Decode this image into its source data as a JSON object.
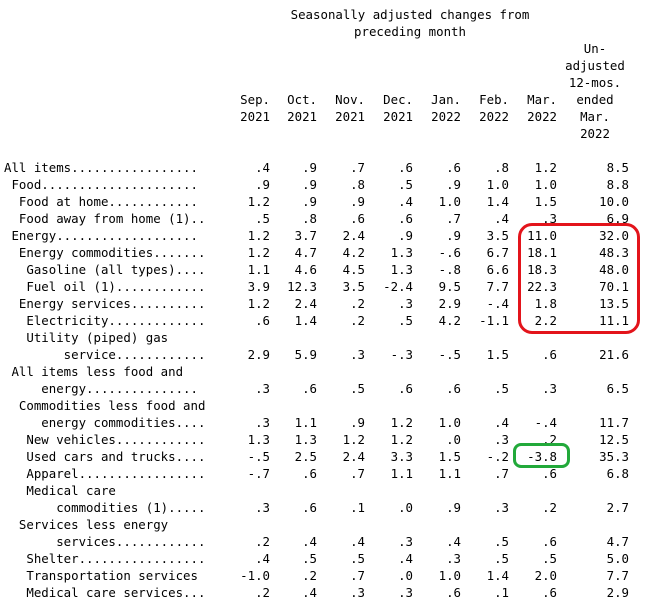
{
  "header": {
    "group_title_line1": "Seasonally adjusted changes from",
    "group_title_line2": "preceding month",
    "unadj_lines": [
      "Un-",
      "adjusted",
      "12-mos.",
      "ended",
      "Mar.",
      "2022"
    ]
  },
  "columns": [
    {
      "top": "Sep.",
      "bottom": "2021"
    },
    {
      "top": "Oct.",
      "bottom": "2021"
    },
    {
      "top": "Nov.",
      "bottom": "2021"
    },
    {
      "top": "Dec.",
      "bottom": "2021"
    },
    {
      "top": "Jan.",
      "bottom": "2022"
    },
    {
      "top": "Feb.",
      "bottom": "2022"
    },
    {
      "top": "Mar.",
      "bottom": "2022"
    }
  ],
  "rows": [
    {
      "label": "All items.................",
      "values": [
        ".4",
        ".9",
        ".7",
        ".6",
        ".6",
        ".8",
        "1.2",
        "8.5"
      ]
    },
    {
      "label": " Food.....................",
      "values": [
        ".9",
        ".9",
        ".8",
        ".5",
        ".9",
        "1.0",
        "1.0",
        "8.8"
      ]
    },
    {
      "label": "  Food at home............",
      "values": [
        "1.2",
        ".9",
        ".9",
        ".4",
        "1.0",
        "1.4",
        "1.5",
        "10.0"
      ]
    },
    {
      "label": "  Food away from home (1)..",
      "values": [
        ".5",
        ".8",
        ".6",
        ".6",
        ".7",
        ".4",
        ".3",
        "6.9"
      ]
    },
    {
      "label": " Energy...................",
      "values": [
        "1.2",
        "3.7",
        "2.4",
        ".9",
        ".9",
        "3.5",
        "11.0",
        "32.0"
      ]
    },
    {
      "label": "  Energy commodities.......",
      "values": [
        "1.2",
        "4.7",
        "4.2",
        "1.3",
        "-.6",
        "6.7",
        "18.1",
        "48.3"
      ]
    },
    {
      "label": "   Gasoline (all types)....",
      "values": [
        "1.1",
        "4.6",
        "4.5",
        "1.3",
        "-.8",
        "6.6",
        "18.3",
        "48.0"
      ]
    },
    {
      "label": "   Fuel oil (1)............",
      "values": [
        "3.9",
        "12.3",
        "3.5",
        "-2.4",
        "9.5",
        "7.7",
        "22.3",
        "70.1"
      ]
    },
    {
      "label": "  Energy services..........",
      "values": [
        "1.2",
        "2.4",
        ".2",
        ".3",
        "2.9",
        "-.4",
        "1.8",
        "13.5"
      ]
    },
    {
      "label": "   Electricity.............",
      "values": [
        ".6",
        "1.4",
        ".2",
        ".5",
        "4.2",
        "-1.1",
        "2.2",
        "11.1"
      ]
    },
    {
      "label": "   Utility (piped) gas",
      "values": [
        "",
        "",
        "",
        "",
        "",
        "",
        "",
        ""
      ]
    },
    {
      "label": "        service............",
      "values": [
        "2.9",
        "5.9",
        ".3",
        "-.3",
        "-.5",
        "1.5",
        ".6",
        "21.6"
      ]
    },
    {
      "label": " All items less food and",
      "values": [
        "",
        "",
        "",
        "",
        "",
        "",
        "",
        ""
      ]
    },
    {
      "label": "     energy...............",
      "values": [
        ".3",
        ".6",
        ".5",
        ".6",
        ".6",
        ".5",
        ".3",
        "6.5"
      ]
    },
    {
      "label": "  Commodities less food and",
      "values": [
        "",
        "",
        "",
        "",
        "",
        "",
        "",
        ""
      ]
    },
    {
      "label": "     energy commodities....",
      "values": [
        ".3",
        "1.1",
        ".9",
        "1.2",
        "1.0",
        ".4",
        "-.4",
        "11.7"
      ]
    },
    {
      "label": "   New vehicles............",
      "values": [
        "1.3",
        "1.3",
        "1.2",
        "1.2",
        ".0",
        ".3",
        ".2",
        "12.5"
      ]
    },
    {
      "label": "   Used cars and trucks....",
      "values": [
        "-.5",
        "2.5",
        "2.4",
        "3.3",
        "1.5",
        "-.2",
        "-3.8",
        "35.3"
      ]
    },
    {
      "label": "   Apparel.................",
      "values": [
        "-.7",
        ".6",
        ".7",
        "1.1",
        "1.1",
        ".7",
        ".6",
        "6.8"
      ]
    },
    {
      "label": "   Medical care",
      "values": [
        "",
        "",
        "",
        "",
        "",
        "",
        "",
        ""
      ]
    },
    {
      "label": "       commodities (1).....",
      "values": [
        ".3",
        ".6",
        ".1",
        ".0",
        ".9",
        ".3",
        ".2",
        "2.7"
      ]
    },
    {
      "label": "  Services less energy",
      "values": [
        "",
        "",
        "",
        "",
        "",
        "",
        "",
        ""
      ]
    },
    {
      "label": "       services............",
      "values": [
        ".2",
        ".4",
        ".4",
        ".3",
        ".4",
        ".5",
        ".6",
        "4.7"
      ]
    },
    {
      "label": "   Shelter.................",
      "values": [
        ".4",
        ".5",
        ".5",
        ".4",
        ".3",
        ".5",
        ".5",
        "5.0"
      ]
    },
    {
      "label": "   Transportation services",
      "values": [
        "-1.0",
        ".2",
        ".7",
        ".0",
        "1.0",
        "1.4",
        "2.0",
        "7.7"
      ]
    },
    {
      "label": "   Medical care services...",
      "values": [
        ".2",
        ".4",
        ".3",
        ".3",
        ".6",
        ".1",
        ".6",
        "2.9"
      ]
    }
  ]
}
